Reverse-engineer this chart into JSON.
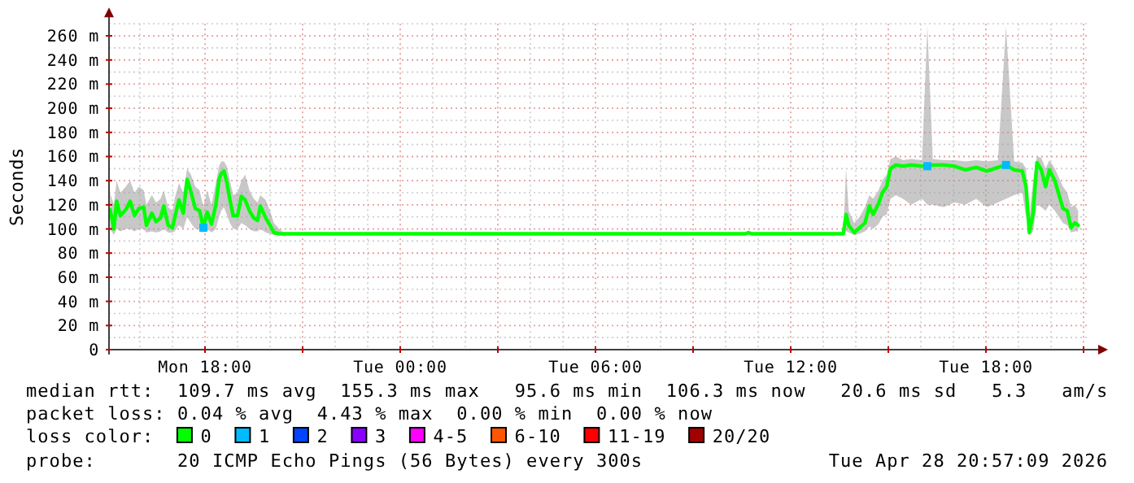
{
  "chart_data": {
    "type": "line",
    "ylabel": "Seconds",
    "legend_title": "loss color:",
    "legend": "bottom",
    "grid": true,
    "marker": "none",
    "line_style": "solid",
    "xlim": [
      "2026-04-27T15:03",
      "2026-04-28T21:12"
    ],
    "xticks": [
      {
        "value": "2026-04-27T18:00",
        "label": "Mon 18:00"
      },
      {
        "value": "2026-04-27T21:00",
        "label": null
      },
      {
        "value": "2026-04-28T00:00",
        "label": "Tue 00:00"
      },
      {
        "value": "2026-04-28T03:00",
        "label": null
      },
      {
        "value": "2026-04-28T06:00",
        "label": "Tue 06:00"
      },
      {
        "value": "2026-04-28T09:00",
        "label": null
      },
      {
        "value": "2026-04-28T12:00",
        "label": "Tue 12:00"
      },
      {
        "value": "2026-04-28T15:00",
        "label": null
      },
      {
        "value": "2026-04-28T18:00",
        "label": "Tue 18:00"
      },
      {
        "value": "2026-04-28T21:00",
        "label": null
      }
    ],
    "ylim": [
      0,
      270
    ],
    "yticks": [
      0,
      {
        "value": 20,
        "label": "20 m"
      },
      {
        "value": 40,
        "label": "40 m"
      },
      {
        "value": 60,
        "label": "60 m"
      },
      {
        "value": 80,
        "label": "80 m"
      },
      {
        "value": 100,
        "label": "100 m"
      },
      {
        "value": 120,
        "label": "120 m"
      },
      {
        "value": 140,
        "label": "140 m"
      },
      {
        "value": 160,
        "label": "160 m"
      },
      {
        "value": 180,
        "label": "180 m"
      },
      {
        "value": 200,
        "label": "200 m"
      },
      {
        "value": 220,
        "label": "220 m"
      },
      {
        "value": 240,
        "label": "240 m"
      },
      {
        "value": 260,
        "label": "260 m"
      }
    ],
    "series": [
      {
        "name": "0",
        "color": "#00ff00",
        "x": [
          "2026-04-27T15:05",
          "2026-04-27T15:12",
          "2026-04-27T15:17",
          "2026-04-27T15:24",
          "2026-04-27T15:34",
          "2026-04-27T15:42",
          "2026-04-27T15:50",
          "2026-04-27T15:58",
          "2026-04-27T16:07",
          "2026-04-27T16:12",
          "2026-04-27T16:22",
          "2026-04-27T16:30",
          "2026-04-27T16:38",
          "2026-04-27T16:44",
          "2026-04-27T16:52",
          "2026-04-27T17:00",
          "2026-04-27T17:04",
          "2026-04-27T17:12",
          "2026-04-27T17:20",
          "2026-04-27T17:27",
          "2026-04-27T17:34",
          "2026-04-27T17:42",
          "2026-04-27T17:50",
          "2026-04-27T17:57",
          "2026-04-27T18:04",
          "2026-04-27T18:12",
          "2026-04-27T18:20",
          "2026-04-27T18:26",
          "2026-04-27T18:30",
          "2026-04-27T18:35",
          "2026-04-27T18:40",
          "2026-04-27T18:46",
          "2026-04-27T18:52",
          "2026-04-27T19:00",
          "2026-04-27T19:07",
          "2026-04-27T19:14",
          "2026-04-27T19:22",
          "2026-04-27T19:30",
          "2026-04-27T19:37",
          "2026-04-27T19:42",
          "2026-04-27T19:52",
          "2026-04-27T20:00",
          "2026-04-27T20:07",
          "2026-04-27T20:17",
          "2026-04-27T20:27",
          "2026-04-28T10:36",
          "2026-04-28T10:42",
          "2026-04-28T10:48",
          "2026-04-28T13:37",
          "2026-04-28T13:42",
          "2026-04-28T13:47",
          "2026-04-28T13:57",
          "2026-04-28T14:07",
          "2026-04-28T14:17",
          "2026-04-28T14:25",
          "2026-04-28T14:32",
          "2026-04-28T14:42",
          "2026-04-28T14:49",
          "2026-04-28T14:57",
          "2026-04-28T15:04",
          "2026-04-28T15:14",
          "2026-04-28T15:27",
          "2026-04-28T15:42",
          "2026-04-28T16:02",
          "2026-04-28T16:12",
          "2026-04-28T16:22",
          "2026-04-28T16:42",
          "2026-04-28T17:02",
          "2026-04-28T17:22",
          "2026-04-28T17:42",
          "2026-04-28T18:02",
          "2026-04-28T18:22",
          "2026-04-28T18:37",
          "2026-04-28T18:52",
          "2026-04-28T19:07",
          "2026-04-28T19:14",
          "2026-04-28T19:20",
          "2026-04-28T19:27",
          "2026-04-28T19:34",
          "2026-04-28T19:42",
          "2026-04-28T19:50",
          "2026-04-28T19:57",
          "2026-04-28T20:07",
          "2026-04-28T20:22",
          "2026-04-28T20:30",
          "2026-04-28T20:37",
          "2026-04-28T20:44",
          "2026-04-28T20:50"
        ],
        "values": [
          116,
          100,
          123,
          111,
          116,
          123,
          111,
          117,
          118,
          103,
          113,
          106,
          109,
          119,
          103,
          101,
          109,
          124,
          113,
          141,
          131,
          117,
          115,
          101,
          114,
          104,
          120,
          141,
          146,
          148,
          139,
          124,
          111,
          111,
          127,
          124,
          115,
          109,
          107,
          119,
          109,
          103,
          97,
          96,
          96,
          96,
          97,
          96,
          96,
          112,
          103,
          97,
          101,
          105,
          119,
          112,
          121,
          130,
          135,
          150,
          153,
          152,
          153,
          152,
          152,
          153,
          153,
          152,
          149,
          151,
          148,
          151,
          153,
          149,
          148,
          135,
          97,
          113,
          155,
          149,
          135,
          149,
          140,
          117,
          115,
          101,
          105,
          103
        ],
        "lower": [
          100,
          95,
          100,
          98,
          100,
          100,
          98,
          100,
          100,
          97,
          98,
          97,
          98,
          100,
          97,
          97,
          98,
          103,
          100,
          110,
          105,
          100,
          100,
          97,
          100,
          97,
          100,
          110,
          115,
          118,
          112,
          105,
          100,
          100,
          105,
          103,
          100,
          98,
          98,
          100,
          97,
          96,
          95,
          95,
          96,
          96,
          96,
          96,
          96,
          98,
          97,
          95,
          96,
          98,
          102,
          100,
          104,
          110,
          112,
          125,
          128,
          125,
          120,
          125,
          120,
          120,
          118,
          122,
          120,
          125,
          118,
          122,
          125,
          128,
          130,
          110,
          95,
          98,
          120,
          118,
          115,
          120,
          115,
          105,
          103,
          97,
          98,
          98
        ],
        "upper": [
          130,
          120,
          140,
          130,
          135,
          140,
          130,
          135,
          132,
          120,
          128,
          122,
          125,
          132,
          118,
          115,
          125,
          138,
          130,
          150,
          145,
          135,
          132,
          118,
          132,
          120,
          138,
          152,
          156,
          156,
          152,
          140,
          128,
          130,
          140,
          145,
          132,
          125,
          122,
          128,
          124,
          115,
          105,
          100,
          96,
          96,
          98,
          96,
          96,
          150,
          115,
          105,
          110,
          118,
          128,
          125,
          132,
          140,
          145,
          158,
          160,
          157,
          158,
          157,
          268,
          158,
          157,
          157,
          156,
          157,
          156,
          157,
          268,
          156,
          155,
          150,
          110,
          140,
          160,
          159,
          150,
          157,
          150,
          135,
          130,
          118,
          120,
          115
        ]
      },
      {
        "name": "1",
        "color": "#00bbff",
        "type": "scatter",
        "marker": "square",
        "x": [
          "2026-04-27T17:57",
          "2026-04-28T16:12",
          "2026-04-28T18:37"
        ],
        "values": [
          101,
          152,
          153
        ]
      },
      {
        "name": "2",
        "color": "#0044ff"
      },
      {
        "name": "3",
        "color": "#8a00ff"
      },
      {
        "name": "4-5",
        "color": "#ff00ff"
      },
      {
        "name": "6-10",
        "color": "#ff5500"
      },
      {
        "name": "11-19",
        "color": "#ff0000"
      },
      {
        "name": "20/20",
        "color": "#a00000"
      }
    ],
    "annotations": [
      "median rtt:  109.7 ms avg  155.3 ms max   95.6 ms min  106.3 ms now   20.6 ms sd   5.3   am/s",
      "packet loss: 0.04 % avg  4.43 % max  0.00 % min  0.00 % now",
      "probe:       20 ICMP Echo Pings (56 Bytes) every 300s",
      "Tue Apr 28 20:57:09 2026"
    ]
  }
}
